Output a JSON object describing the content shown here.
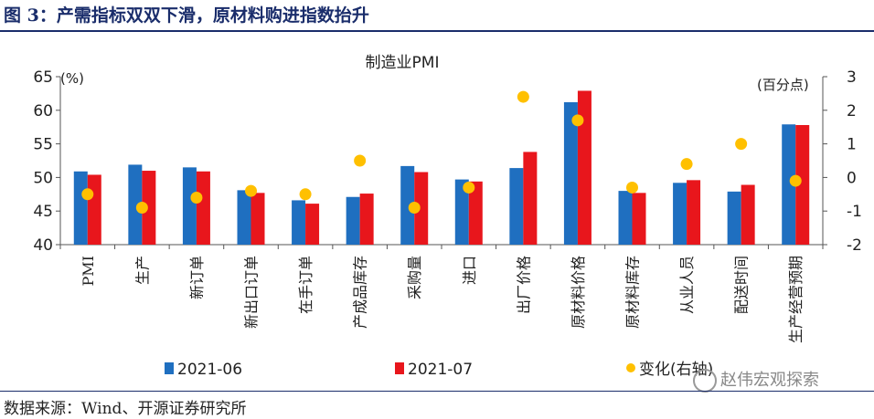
{
  "figure": {
    "title": "图 3：产需指标双双下滑，原材料购进指数抬升",
    "source": "数据来源：Wind、开源证券研究所",
    "watermark": "赵伟宏观探索"
  },
  "chart_data": {
    "type": "bar",
    "title": "制造业PMI",
    "left_axis_unit": "(%)",
    "right_axis_unit": "(百分点)",
    "ylim_left": [
      40,
      65
    ],
    "yticks_left": [
      40,
      45,
      50,
      55,
      60,
      65
    ],
    "ylim_right": [
      -2,
      3
    ],
    "yticks_right": [
      -2,
      -1,
      0,
      1,
      2,
      3
    ],
    "categories": [
      "PMI",
      "生产",
      "新订单",
      "新出口订单",
      "在手订单",
      "产成品库存",
      "采购量",
      "进口",
      "出厂价格",
      "原材料价格",
      "原材料库存",
      "从业人员",
      "配送时间",
      "生产经营预期"
    ],
    "series": [
      {
        "name": "2021-06",
        "kind": "bar",
        "axis": "left",
        "color": "#1f6fc0",
        "values": [
          50.9,
          51.9,
          51.5,
          48.1,
          46.6,
          47.1,
          51.7,
          49.7,
          51.4,
          61.2,
          48.0,
          49.2,
          47.9,
          57.9
        ]
      },
      {
        "name": "2021-07",
        "kind": "bar",
        "axis": "left",
        "color": "#e8161c",
        "values": [
          50.4,
          51.0,
          50.9,
          47.7,
          46.1,
          47.6,
          50.8,
          49.4,
          53.8,
          62.9,
          47.7,
          49.6,
          48.9,
          57.8
        ]
      },
      {
        "name": "变化(右轴)",
        "kind": "dot",
        "axis": "right",
        "color": "#ffc000",
        "values": [
          -0.5,
          -0.9,
          -0.6,
          -0.4,
          -0.5,
          0.5,
          -0.9,
          -0.3,
          2.4,
          1.7,
          -0.3,
          0.4,
          1.0,
          -0.1
        ]
      }
    ]
  }
}
